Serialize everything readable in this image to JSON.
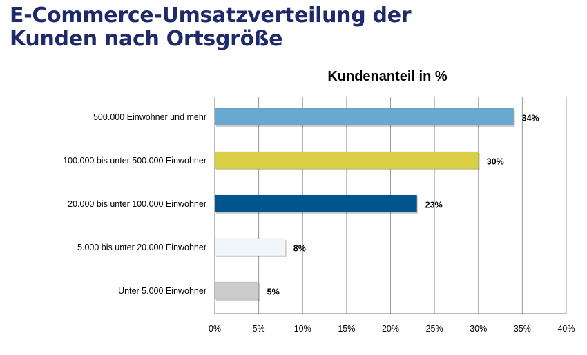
{
  "slide": {
    "title_line1": "E-Commerce-Umsatzverteilung der",
    "title_line2": "Kunden nach Ortsgröße"
  },
  "chart_data": {
    "type": "bar",
    "orientation": "horizontal",
    "title": "Kundenanteil in %",
    "xlabel": "",
    "ylabel": "",
    "xlim": [
      0,
      40
    ],
    "x_ticks": [
      "0%",
      "5%",
      "10%",
      "15%",
      "20%",
      "25%",
      "30%",
      "35%",
      "40%"
    ],
    "grid": "vertical",
    "legend": "none",
    "categories": [
      "500.000 Einwohner und mehr",
      "100.000 bis unter 500.000 Einwohner",
      "20.000 bis unter 100.000 Einwohner",
      "5.000 bis unter 20.000 Einwohner",
      "Unter 5.000 Einwohner"
    ],
    "values": [
      34,
      30,
      23,
      8,
      5
    ],
    "value_labels": [
      "34%",
      "30%",
      "23%",
      "8%",
      "5%"
    ],
    "colors": [
      "#6aa9cf",
      "#d9cf45",
      "#00558f",
      "#f1f6fb",
      "#cccccc"
    ]
  }
}
